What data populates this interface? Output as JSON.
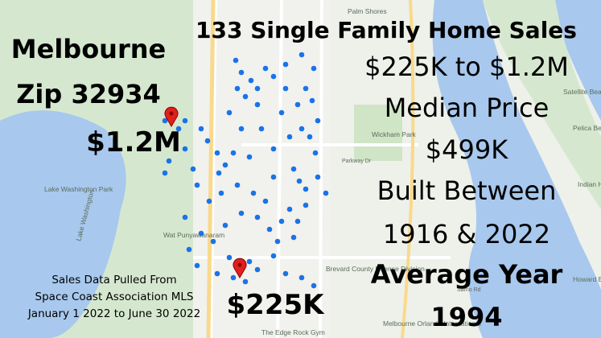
{
  "header": {
    "city": "Melbourne",
    "zip": "Zip 32934",
    "headline": "133 Single Family Home Sales"
  },
  "stats": [
    "$225K to $1.2M",
    "Median Price",
    "$499K",
    "Built Between",
    "1916 & 2022",
    "Average Year",
    "1994"
  ],
  "price_labels": {
    "high": "$1.2M",
    "low": "$225K"
  },
  "source": [
    "Sales Data Pulled From",
    "Space Coast Association MLS",
    "January 1 2022 to June 30 2022"
  ],
  "map_labels": [
    "Palm Shores",
    "Satellite Bea",
    "Wickham Park",
    "Parkway Dr",
    "Lake Washington Park",
    "Lake Washington",
    "Wat Punyawanaram",
    "Brevard County License Division",
    "Sarno Rd",
    "Melbourne Orlando International",
    "The Edge Rock Gym",
    "Pelica Beach Pa",
    "Indian Harbour",
    "Howard E Beach P"
  ]
}
